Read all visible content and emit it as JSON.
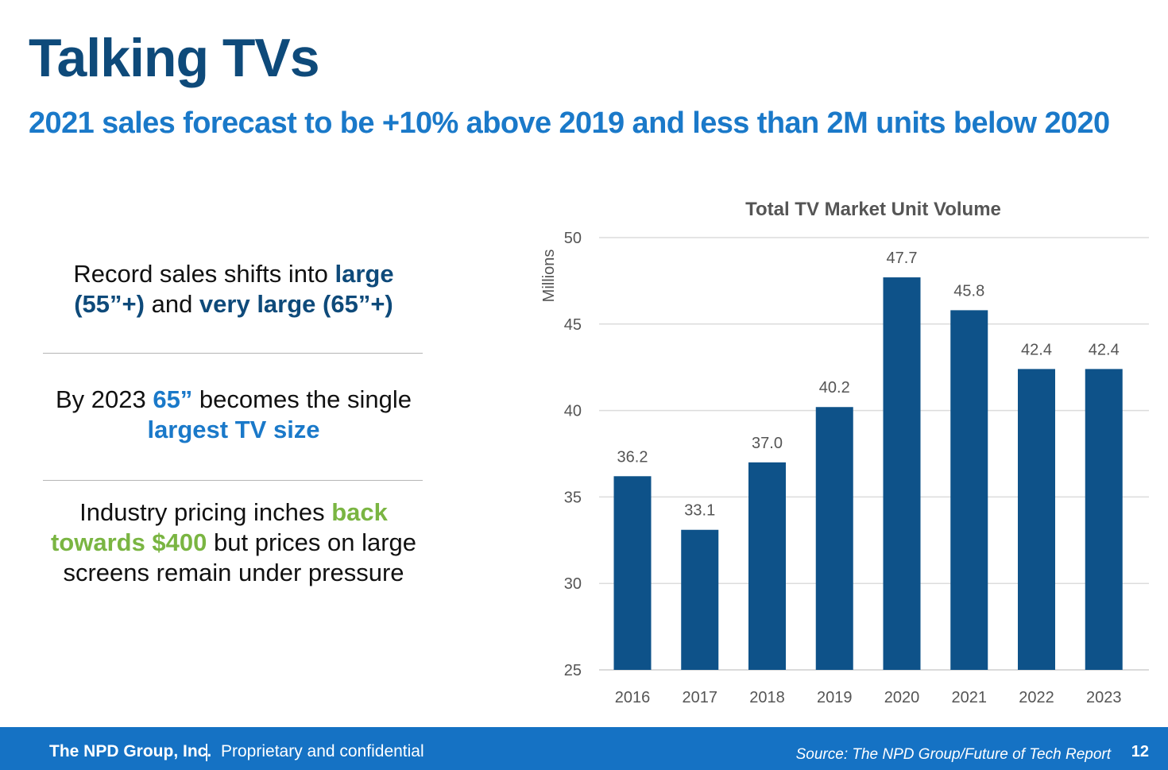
{
  "slide": {
    "title": "Talking TVs",
    "subtitle": "2021 sales forecast to be +10% above 2019 and less than 2M units below 2020"
  },
  "bullets": [
    {
      "segments": [
        {
          "text": "Record sales shifts into ",
          "style": "plain"
        },
        {
          "text": "large (55”+)",
          "style": "navy"
        },
        {
          "text": " and ",
          "style": "plain"
        },
        {
          "text": "very large (65”+)",
          "style": "navy"
        }
      ]
    },
    {
      "segments": [
        {
          "text": "By 2023 ",
          "style": "plain"
        },
        {
          "text": "65”",
          "style": "blue"
        },
        {
          "text": " becomes the single ",
          "style": "plain"
        },
        {
          "text": "largest TV size",
          "style": "blue"
        }
      ]
    },
    {
      "segments": [
        {
          "text": "Industry pricing inches ",
          "style": "plain"
        },
        {
          "text": "back towards $400",
          "style": "green"
        },
        {
          "text": " but prices on large screens remain under pressure",
          "style": "plain"
        }
      ]
    }
  ],
  "colors": {
    "navy": "#0e4a7a",
    "blue": "#1a79c9",
    "green": "#7ab542",
    "bar": "#0e5289",
    "footer": "#1572c4"
  },
  "chart_data": {
    "type": "bar",
    "title": "Total TV Market Unit Volume",
    "ylabel": "Millions",
    "xlabel": "",
    "categories": [
      "2016",
      "2017",
      "2018",
      "2019",
      "2020",
      "2021",
      "2022",
      "2023"
    ],
    "values": [
      36.2,
      33.1,
      37.0,
      40.2,
      47.7,
      45.8,
      42.4,
      42.4
    ],
    "value_labels": [
      "36.2",
      "33.1",
      "37.0",
      "40.2",
      "47.7",
      "45.8",
      "42.4",
      "42.4"
    ],
    "ylim": [
      25,
      50
    ],
    "yticks": [
      25,
      30,
      35,
      40,
      45,
      50
    ],
    "grid": true,
    "legend": "none"
  },
  "footer": {
    "company": "The NPD Group, Inc.",
    "separator": "|",
    "confidential": "Proprietary and confidential",
    "source": "Source: The NPD Group/Future of Tech Report",
    "page": "12"
  }
}
